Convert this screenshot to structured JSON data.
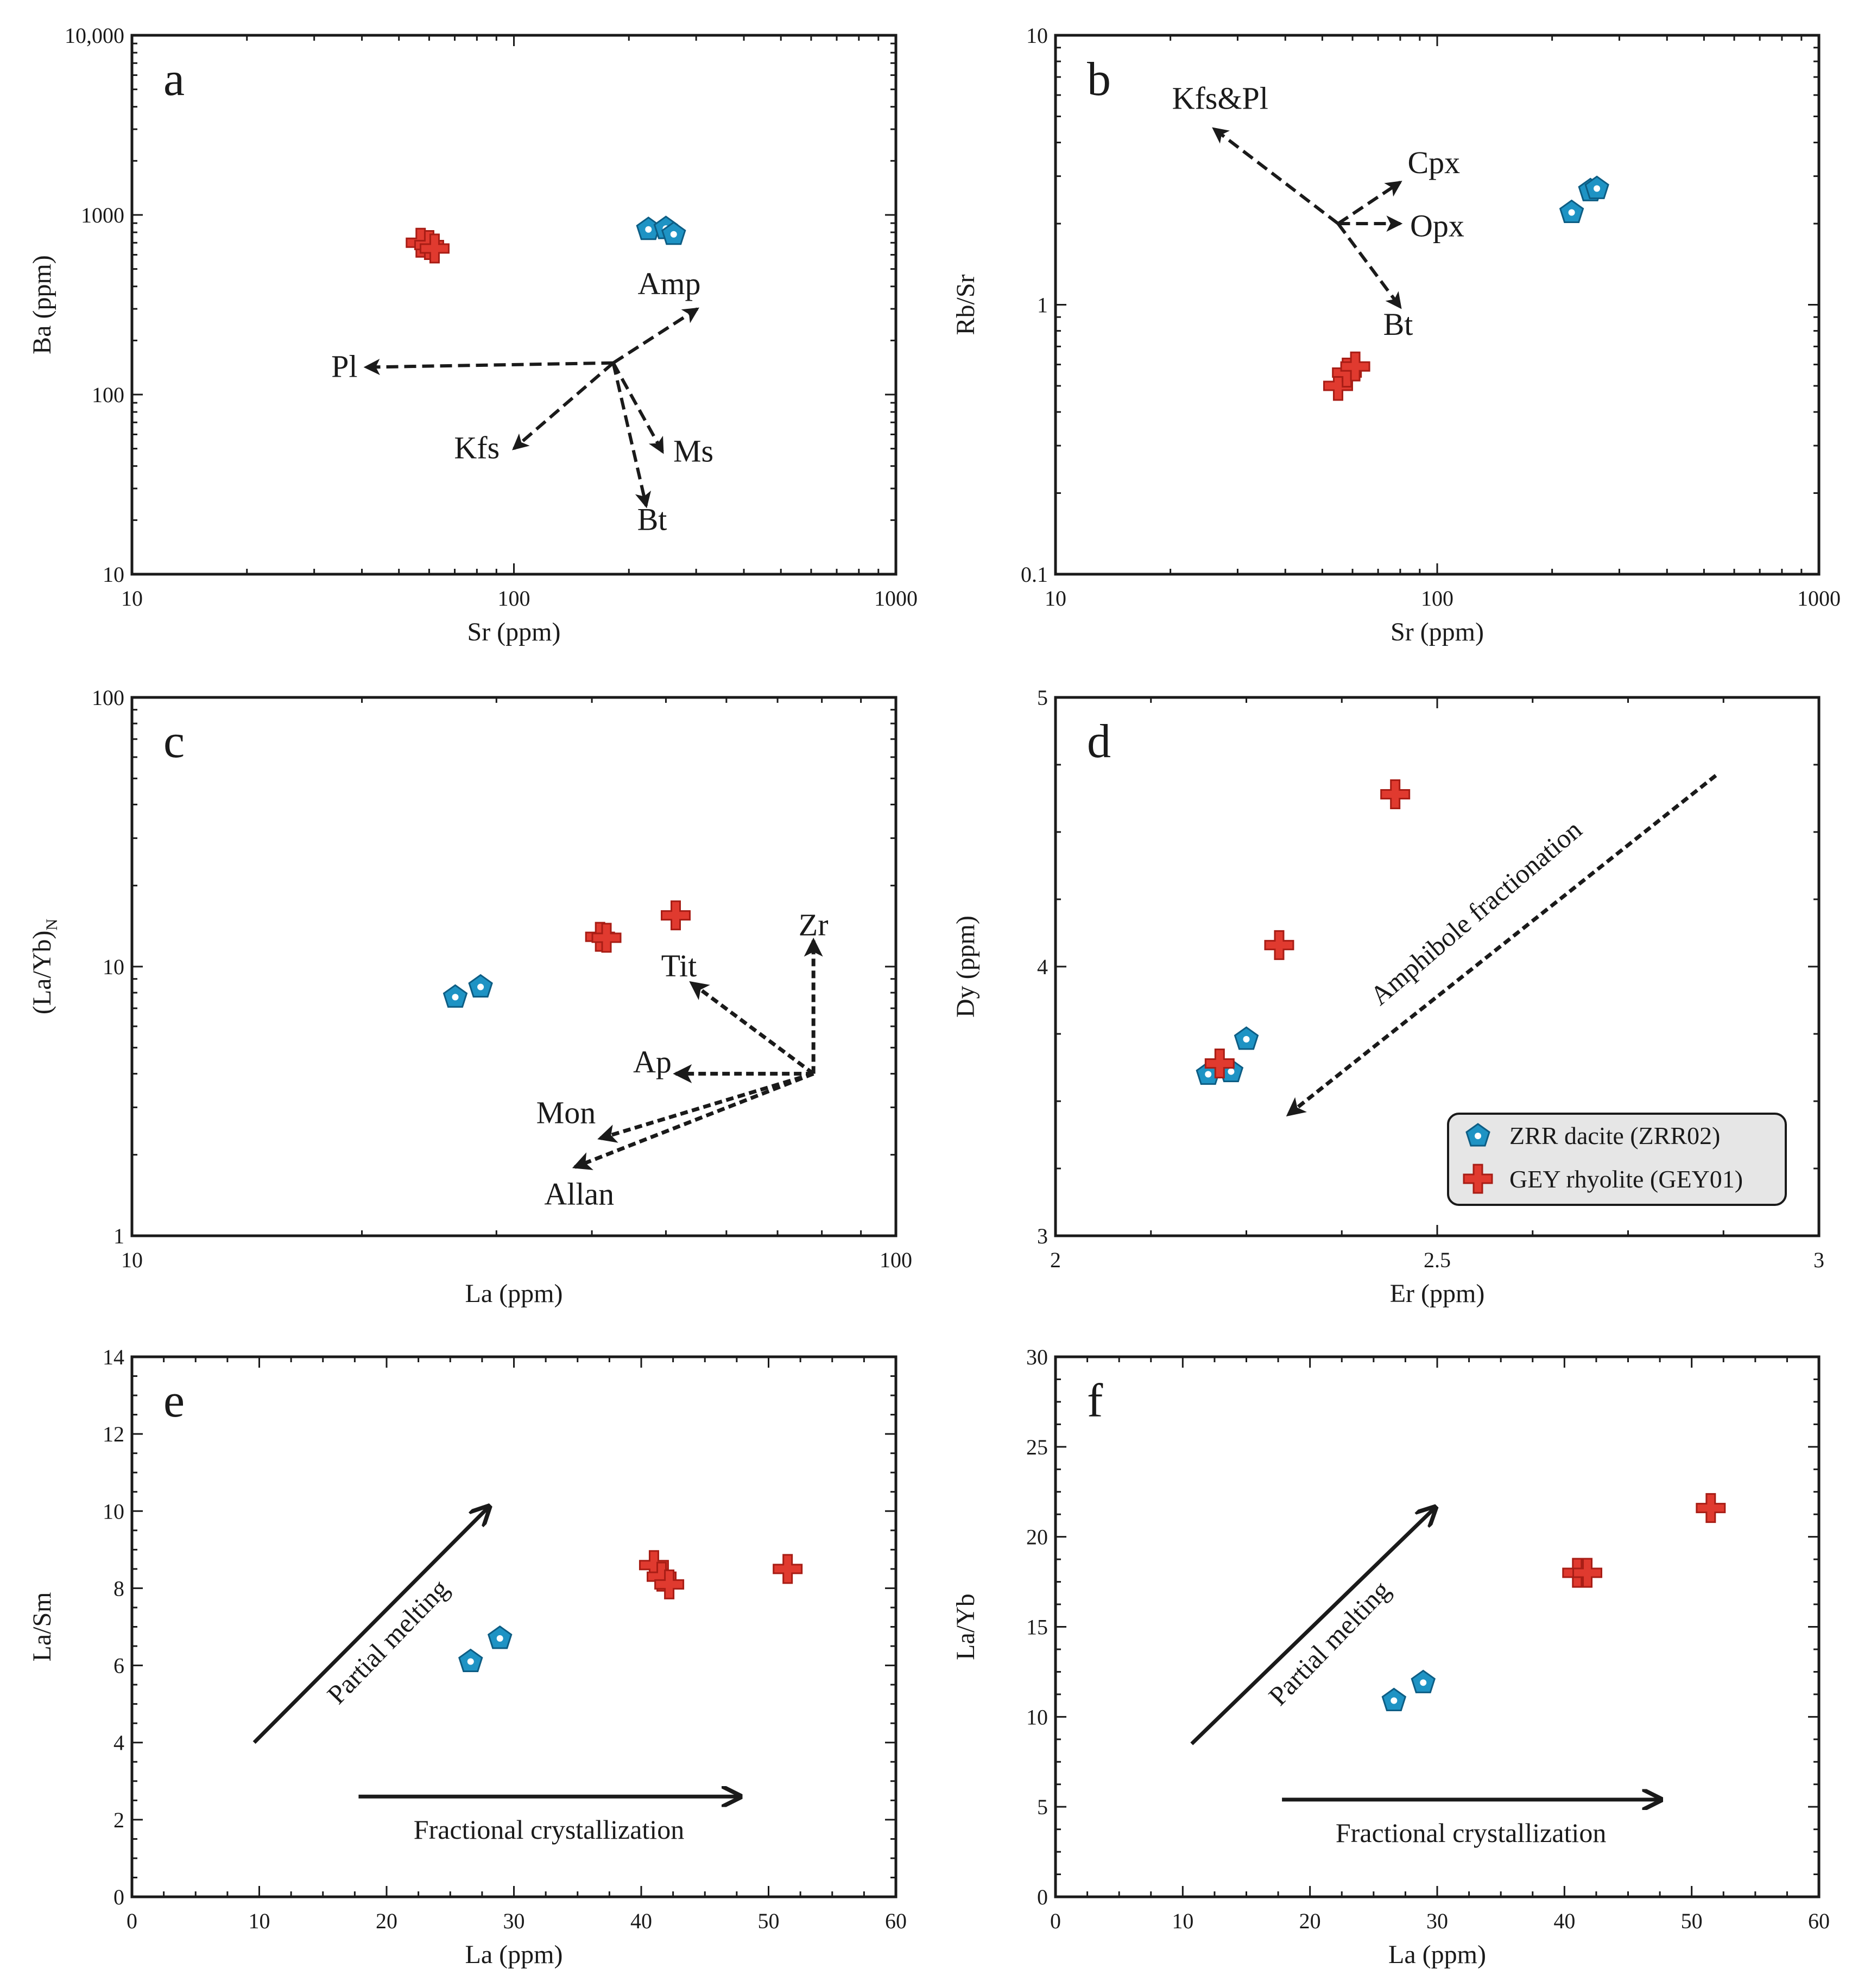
{
  "colors": {
    "dacite": "#1e93c4",
    "rhyolite": "#e03a2f",
    "axis": "#1a1a1a",
    "legend_bg": "#e6e6e6"
  },
  "legend": {
    "dacite_label": "ZRR dacite (ZRR02)",
    "rhyolite_label": "GEY rhyolite (GEY01)",
    "dacite_icon": "pentagon-icon",
    "rhyolite_icon": "cross-icon"
  },
  "chart_data": [
    {
      "panel": "a",
      "type": "scatter",
      "xscale": "log",
      "yscale": "log",
      "xlabel": "Sr (ppm)",
      "ylabel": "Ba (ppm)",
      "xlim": [
        10,
        1000
      ],
      "ylim": [
        10,
        10000
      ],
      "xticks": [
        {
          "v": 10,
          "label": "10"
        },
        {
          "v": 100,
          "label": "100"
        },
        {
          "v": 1000,
          "label": "1000"
        }
      ],
      "yticks": [
        {
          "v": 10,
          "label": "10"
        },
        {
          "v": 100,
          "label": "100"
        },
        {
          "v": 1000,
          "label": "1000"
        },
        {
          "v": 10000,
          "label": "10,000"
        }
      ],
      "series": [
        {
          "name": "ZRR dacite (ZRR02)",
          "marker": "pentagon",
          "points": [
            [
              225,
              830
            ],
            [
              250,
              840
            ],
            [
              262,
              780
            ]
          ]
        },
        {
          "name": "GEY rhyolite (GEY01)",
          "marker": "cross",
          "points": [
            [
              57,
              700
            ],
            [
              60,
              680
            ],
            [
              62,
              650
            ]
          ]
        }
      ],
      "vectors": [
        {
          "label": "Pl",
          "from": [
            182,
            150
          ],
          "to": [
            41,
            142
          ],
          "style": "dashed",
          "label_at": [
            36,
            142
          ]
        },
        {
          "label": "Amp",
          "from": [
            182,
            150
          ],
          "to": [
            302,
            300
          ],
          "style": "dashed",
          "label_at": [
            255,
            410
          ]
        },
        {
          "label": "Kfs",
          "from": [
            182,
            150
          ],
          "to": [
            100,
            50
          ],
          "style": "dashed",
          "label_at": [
            80,
            50
          ]
        },
        {
          "label": "Ms",
          "from": [
            182,
            150
          ],
          "to": [
            245,
            48
          ],
          "style": "dashed",
          "label_at": [
            295,
            48
          ]
        },
        {
          "label": "Bt",
          "from": [
            182,
            150
          ],
          "to": [
            222,
            24
          ],
          "style": "dashed",
          "label_at": [
            230,
            20
          ]
        }
      ]
    },
    {
      "panel": "b",
      "type": "scatter",
      "xscale": "log",
      "yscale": "log",
      "xlabel": "Sr (ppm)",
      "ylabel": "Rb/Sr",
      "xlim": [
        10,
        1000
      ],
      "ylim": [
        0.1,
        10
      ],
      "xticks": [
        {
          "v": 10,
          "label": "10"
        },
        {
          "v": 100,
          "label": "100"
        },
        {
          "v": 1000,
          "label": "1000"
        }
      ],
      "yticks": [
        {
          "v": 0.1,
          "label": "0.1"
        },
        {
          "v": 1,
          "label": "1"
        },
        {
          "v": 10,
          "label": "10"
        }
      ],
      "series": [
        {
          "name": "ZRR dacite (ZRR02)",
          "marker": "pentagon",
          "points": [
            [
              225,
              2.2
            ],
            [
              252,
              2.65
            ],
            [
              262,
              2.7
            ]
          ]
        },
        {
          "name": "GEY rhyolite (GEY01)",
          "marker": "cross",
          "points": [
            [
              55,
              0.5
            ],
            [
              58,
              0.56
            ],
            [
              61,
              0.59
            ]
          ]
        }
      ],
      "vectors": [
        {
          "label": "Kfs&Pl",
          "from": [
            55,
            2.0
          ],
          "to": [
            26,
            4.5
          ],
          "style": "dashed",
          "label_at": [
            27,
            5.8
          ]
        },
        {
          "label": "Cpx",
          "from": [
            55,
            2.0
          ],
          "to": [
            80,
            2.85
          ],
          "style": "dashed",
          "label_at": [
            98,
            3.35
          ]
        },
        {
          "label": "Opx",
          "from": [
            55,
            2.0
          ],
          "to": [
            80,
            2.0
          ],
          "style": "dashed",
          "label_at": [
            100,
            1.95
          ]
        },
        {
          "label": "Bt",
          "from": [
            55,
            2.0
          ],
          "to": [
            80,
            0.98
          ],
          "style": "dashed",
          "label_at": [
            79,
            0.84
          ]
        }
      ]
    },
    {
      "panel": "c",
      "type": "scatter",
      "xscale": "log",
      "yscale": "log",
      "xlabel": "La (ppm)",
      "ylabel": "(La/Yb)",
      "ylabel_sub": "N",
      "xlim": [
        10,
        100
      ],
      "ylim": [
        1,
        100
      ],
      "xticks": [
        {
          "v": 10,
          "label": "10"
        },
        {
          "v": 100,
          "label": "100"
        }
      ],
      "yticks": [
        {
          "v": 1,
          "label": "1"
        },
        {
          "v": 10,
          "label": "10"
        },
        {
          "v": 100,
          "label": "100"
        }
      ],
      "series": [
        {
          "name": "ZRR dacite (ZRR02)",
          "marker": "pentagon",
          "points": [
            [
              26.5,
              7.7
            ],
            [
              28.6,
              8.4
            ]
          ]
        },
        {
          "name": "GEY rhyolite (GEY01)",
          "marker": "cross",
          "points": [
            [
              41.0,
              12.9
            ],
            [
              41.8,
              12.8
            ],
            [
              51.5,
              15.5
            ]
          ]
        }
      ],
      "vectors": [
        {
          "label": "Zr",
          "from": [
            78,
            4.0
          ],
          "to": [
            78,
            12.5
          ],
          "style": "dotted",
          "label_at": [
            78,
            14.2
          ]
        },
        {
          "label": "Tit",
          "from": [
            78,
            4.0
          ],
          "to": [
            54,
            8.7
          ],
          "style": "dotted",
          "label_at": [
            52,
            10.0
          ]
        },
        {
          "label": "Ap",
          "from": [
            78,
            4.0
          ],
          "to": [
            51.5,
            4.0
          ],
          "style": "dotted",
          "label_at": [
            48,
            4.4
          ]
        },
        {
          "label": "Mon",
          "from": [
            78,
            4.0
          ],
          "to": [
            41,
            2.3
          ],
          "style": "dotted",
          "label_at": [
            37,
            2.85
          ]
        },
        {
          "label": "Allan",
          "from": [
            78,
            4.0
          ],
          "to": [
            38,
            1.8
          ],
          "style": "dotted",
          "label_at": [
            38.5,
            1.42
          ]
        }
      ]
    },
    {
      "panel": "d",
      "type": "scatter",
      "xscale": "linear",
      "yscale": "linear",
      "xlabel": "Er (ppm)",
      "ylabel": "Dy (ppm)",
      "xlim": [
        2,
        3
      ],
      "ylim": [
        3,
        5
      ],
      "xticks": [
        {
          "v": 2,
          "label": "2"
        },
        {
          "v": 2.5,
          "label": "2.5"
        },
        {
          "v": 3,
          "label": "3"
        }
      ],
      "yticks": [
        {
          "v": 3,
          "label": "3"
        },
        {
          "v": 4,
          "label": "4"
        },
        {
          "v": 5,
          "label": "5"
        }
      ],
      "series": [
        {
          "name": "ZRR dacite (ZRR02)",
          "marker": "pentagon",
          "points": [
            [
              2.2,
              3.6
            ],
            [
              2.23,
              3.61
            ],
            [
              2.25,
              3.73
            ]
          ]
        },
        {
          "name": "GEY rhyolite (GEY01)",
          "marker": "cross",
          "points": [
            [
              2.215,
              3.64
            ],
            [
              2.293,
              4.08
            ],
            [
              2.445,
              4.64
            ]
          ]
        }
      ],
      "vectors": [
        {
          "label": "Amphibole fractionation",
          "from": [
            2.865,
            4.71
          ],
          "to": [
            2.305,
            3.45
          ],
          "style": "dotted",
          "label_rotate": -40.5
        }
      ]
    },
    {
      "panel": "e",
      "type": "scatter",
      "xscale": "linear",
      "yscale": "linear",
      "xlabel": "La (ppm)",
      "ylabel": "La/Sm",
      "xlim": [
        0,
        60
      ],
      "ylim": [
        0,
        14
      ],
      "xticks": [
        {
          "v": 0,
          "label": "0"
        },
        {
          "v": 10,
          "label": "10"
        },
        {
          "v": 20,
          "label": "20"
        },
        {
          "v": 30,
          "label": "30"
        },
        {
          "v": 40,
          "label": "40"
        },
        {
          "v": 50,
          "label": "50"
        },
        {
          "v": 60,
          "label": "60"
        }
      ],
      "yticks": [
        {
          "v": 0,
          "label": "0"
        },
        {
          "v": 2,
          "label": "2"
        },
        {
          "v": 4,
          "label": "4"
        },
        {
          "v": 6,
          "label": "6"
        },
        {
          "v": 8,
          "label": "8"
        },
        {
          "v": 10,
          "label": "10"
        },
        {
          "v": 12,
          "label": "12"
        },
        {
          "v": 14,
          "label": "14"
        }
      ],
      "series": [
        {
          "name": "ZRR dacite (ZRR02)",
          "marker": "pentagon",
          "points": [
            [
              26.6,
              6.1
            ],
            [
              28.9,
              6.7
            ]
          ]
        },
        {
          "name": "GEY rhyolite (GEY01)",
          "marker": "cross",
          "points": [
            [
              41.0,
              8.6
            ],
            [
              41.6,
              8.3
            ],
            [
              42.2,
              8.1
            ],
            [
              51.5,
              8.5
            ]
          ]
        }
      ],
      "vectors": [
        {
          "label": "Partial melting",
          "from": [
            9.6,
            4.0
          ],
          "to": [
            28.0,
            10.1
          ],
          "style": "solid",
          "label_rotate": -46
        },
        {
          "label": "Fractional crystallization",
          "from": [
            17.8,
            2.6
          ],
          "to": [
            47.7,
            2.6
          ],
          "style": "solid",
          "label_rotate": 0
        }
      ]
    },
    {
      "panel": "f",
      "type": "scatter",
      "xscale": "linear",
      "yscale": "linear",
      "xlabel": "La (ppm)",
      "ylabel": "La/Yb",
      "xlim": [
        0,
        60
      ],
      "ylim": [
        0,
        30
      ],
      "xticks": [
        {
          "v": 0,
          "label": "0"
        },
        {
          "v": 10,
          "label": "10"
        },
        {
          "v": 20,
          "label": "20"
        },
        {
          "v": 30,
          "label": "30"
        },
        {
          "v": 40,
          "label": "40"
        },
        {
          "v": 50,
          "label": "50"
        },
        {
          "v": 60,
          "label": "60"
        }
      ],
      "yticks": [
        {
          "v": 0,
          "label": "0"
        },
        {
          "v": 5,
          "label": "5"
        },
        {
          "v": 10,
          "label": "10"
        },
        {
          "v": 15,
          "label": "15"
        },
        {
          "v": 20,
          "label": "20"
        },
        {
          "v": 25,
          "label": "25"
        },
        {
          "v": 30,
          "label": "30"
        }
      ],
      "series": [
        {
          "name": "ZRR dacite (ZRR02)",
          "marker": "pentagon",
          "points": [
            [
              26.6,
              10.9
            ],
            [
              28.9,
              11.9
            ]
          ]
        },
        {
          "name": "GEY rhyolite (GEY01)",
          "marker": "cross",
          "points": [
            [
              41.0,
              18.0
            ],
            [
              41.8,
              18.0
            ],
            [
              51.5,
              21.6
            ]
          ]
        }
      ],
      "vectors": [
        {
          "label": "Partial melting",
          "from": [
            10.7,
            8.5
          ],
          "to": [
            29.8,
            21.6
          ],
          "style": "solid",
          "label_rotate": -46
        },
        {
          "label": "Fractional crystallization",
          "from": [
            17.8,
            5.4
          ],
          "to": [
            47.5,
            5.4
          ],
          "style": "solid",
          "label_rotate": 0
        }
      ]
    }
  ]
}
